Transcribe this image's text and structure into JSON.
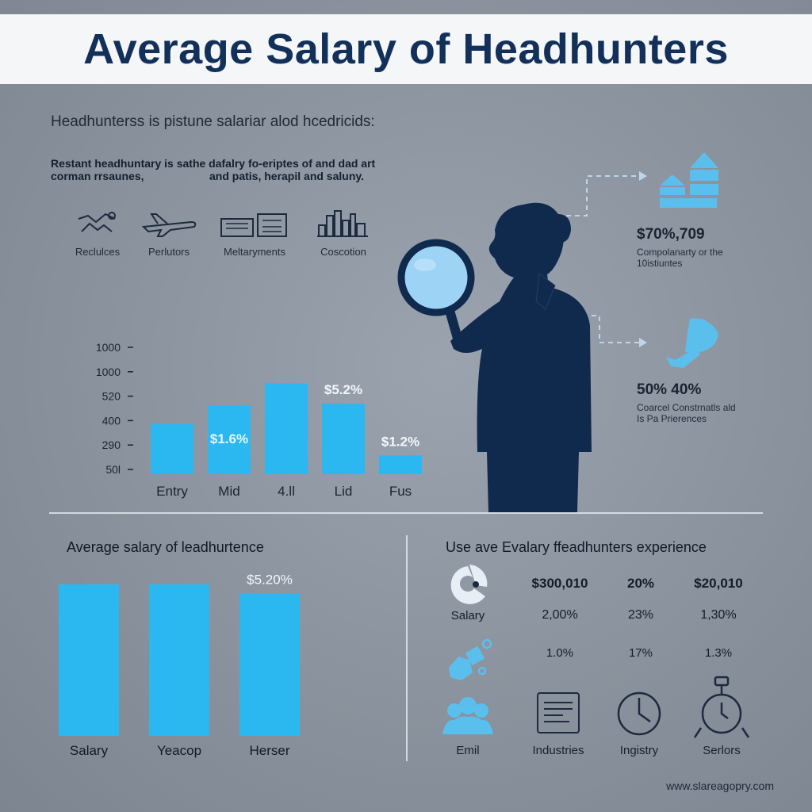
{
  "title": "Average Salary of Headhunters",
  "subtitle": "Headhunterss is pistune salariar alod hcedricids:",
  "intro": {
    "line1": "Restant headhuntary is sathe dafalry fo-eriptes of and dad art",
    "line2a": "corman rrsaunes,",
    "line2b": "and patis, herapil and saluny."
  },
  "industries": [
    {
      "label": "Reclulces",
      "icon": "handshake-icon"
    },
    {
      "label": "Perlutors",
      "icon": "airplane-icon"
    },
    {
      "label": "Meltaryments",
      "icon": "factory-icon"
    },
    {
      "label": "Coscotion",
      "icon": "city-skyline-icon"
    }
  ],
  "stats": [
    {
      "value": "$70%,709",
      "desc_line1": "Compolanarty or the",
      "desc_line2": "10istiuntes",
      "icon": "houses-icon"
    },
    {
      "value": "50% 40%",
      "desc_line1": "Coarcel Constrnatls ald",
      "desc_line2": "Is Pa Prierences",
      "icon": "horn-icon"
    }
  ],
  "chart_data": [
    {
      "type": "bar",
      "categories": [
        "Entry",
        "Mid",
        "4.ll",
        "Lid",
        "Fus"
      ],
      "values": [
        510,
        630,
        770,
        640,
        310
      ],
      "data_labels": [
        "",
        "$1.6%",
        "",
        "$5.2%",
        "$1.2%"
      ],
      "y_tick_labels": [
        "1000",
        "1000",
        "520",
        "400",
        "290",
        "50l"
      ],
      "ylim": [
        190,
        1000
      ],
      "colors": {
        "bar": "#2bb8f0"
      }
    },
    {
      "type": "bar",
      "title": "Average salary of leadhurtence",
      "categories": [
        "Salary",
        "Yeacop",
        "Herser"
      ],
      "values": [
        100,
        100,
        94
      ],
      "data_labels": [
        "",
        "",
        "$5.20%"
      ],
      "ylim": [
        0,
        100
      ],
      "colors": {
        "bar": "#2bb8f0"
      }
    }
  ],
  "experience": {
    "title": "Use ave Evalary ffeadhunters experience",
    "header": [
      "$300,010",
      "20%",
      "$20,010"
    ],
    "row1_label": "Salary",
    "row1": [
      "2,00%",
      "23%",
      "1,30%"
    ],
    "row2": [
      "1.0%",
      "17%",
      "1.3%"
    ],
    "icons": [
      {
        "label": "Emil",
        "icon": "people-group-icon"
      },
      {
        "label": "Industries",
        "icon": "document-icon"
      },
      {
        "label": "Ingistry",
        "icon": "clock-icon"
      },
      {
        "label": "Serlors",
        "icon": "stopwatch-icon"
      }
    ]
  },
  "footer": "www.slareagopry.com",
  "colors": {
    "accent": "#2bb8f0",
    "navy": "#12305a",
    "silhouette": "#0f2a4d",
    "light_blue": "#5bbfee"
  }
}
